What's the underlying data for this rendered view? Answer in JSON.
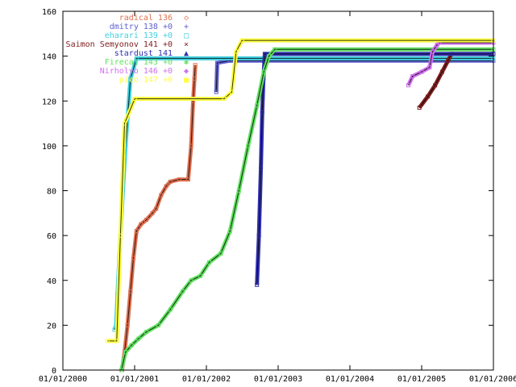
{
  "chart_data": {
    "type": "scatter",
    "title": "",
    "xlabel": "",
    "ylabel": "",
    "grid": false,
    "legend_placement": "top-left",
    "x_ticks": [
      "01/01/2000",
      "01/01/2001",
      "01/01/2002",
      "01/01/2003",
      "01/01/2004",
      "01/01/2005",
      "01/01/2006"
    ],
    "y_ticks": [
      "0",
      "20",
      "40",
      "60",
      "80",
      "100",
      "120",
      "140",
      "160"
    ],
    "xlim": [
      "2000-01-01",
      "2006-01-01"
    ],
    "ylim": [
      0,
      160
    ],
    "series": [
      {
        "name": "radical 136",
        "marker": "◇",
        "color": "#e07050",
        "points": [
          [
            "2000-10-28",
            0
          ],
          [
            "2000-11-10",
            8
          ],
          [
            "2000-11-25",
            20
          ],
          [
            "2000-12-10",
            35
          ],
          [
            "2000-12-25",
            50
          ],
          [
            "2001-01-10",
            62
          ],
          [
            "2001-02-01",
            65
          ],
          [
            "2001-03-01",
            67
          ],
          [
            "2001-04-01",
            70
          ],
          [
            "2001-04-20",
            72
          ],
          [
            "2001-05-15",
            78
          ],
          [
            "2001-06-10",
            82
          ],
          [
            "2001-07-01",
            84
          ],
          [
            "2001-08-15",
            85
          ],
          [
            "2001-09-30",
            85
          ],
          [
            "2001-10-15",
            100
          ],
          [
            "2001-10-25",
            120
          ],
          [
            "2001-11-01",
            130
          ],
          [
            "2001-11-05",
            136
          ]
        ]
      },
      {
        "name": "dmitry 138 +0",
        "marker": "+",
        "color": "#6060d0",
        "points": [
          [
            "2002-02-20",
            124
          ],
          [
            "2002-02-25",
            137
          ],
          [
            "2002-05-01",
            138
          ],
          [
            "2006-01-01",
            138
          ]
        ]
      },
      {
        "name": "eharari 139 +0",
        "marker": "□",
        "color": "#40d0e0",
        "points": [
          [
            "2000-09-20",
            18
          ],
          [
            "2000-09-28",
            20
          ],
          [
            "2000-10-05",
            34
          ],
          [
            "2000-10-20",
            60
          ],
          [
            "2000-11-15",
            100
          ],
          [
            "2000-12-10",
            130
          ],
          [
            "2001-01-10",
            139
          ],
          [
            "2006-01-01",
            139
          ]
        ]
      },
      {
        "name": "Saimon Semyonov 141 +0",
        "marker": "×",
        "color": "#802020",
        "points": [
          [
            "2004-12-20",
            117
          ],
          [
            "2005-02-01",
            122
          ],
          [
            "2005-03-10",
            127
          ],
          [
            "2005-04-15",
            133
          ],
          [
            "2005-05-15",
            138
          ],
          [
            "2005-06-01",
            141
          ],
          [
            "2006-01-01",
            141
          ]
        ]
      },
      {
        "name": "stardust 141",
        "marker": "▲",
        "color": "#3030b0",
        "points": [
          [
            "2002-09-15",
            38
          ],
          [
            "2002-09-25",
            60
          ],
          [
            "2002-10-05",
            90
          ],
          [
            "2002-10-12",
            115
          ],
          [
            "2002-10-18",
            130
          ],
          [
            "2002-10-25",
            141
          ],
          [
            "2006-01-01",
            141
          ]
        ]
      },
      {
        "name": "Firecat 143 +0",
        "marker": "✱",
        "color": "#60e060",
        "points": [
          [
            "2000-10-25",
            0
          ],
          [
            "2000-11-15",
            8
          ],
          [
            "2000-12-15",
            11
          ],
          [
            "2001-01-20",
            14
          ],
          [
            "2001-03-01",
            17
          ],
          [
            "2001-05-01",
            20
          ],
          [
            "2001-07-01",
            27
          ],
          [
            "2001-09-01",
            35
          ],
          [
            "2001-10-15",
            40
          ],
          [
            "2001-12-01",
            42
          ],
          [
            "2002-01-15",
            48
          ],
          [
            "2002-03-15",
            52
          ],
          [
            "2002-05-01",
            62
          ],
          [
            "2002-06-15",
            80
          ],
          [
            "2002-08-01",
            100
          ],
          [
            "2002-09-15",
            118
          ],
          [
            "2002-10-20",
            133
          ],
          [
            "2002-11-15",
            140
          ],
          [
            "2002-12-15",
            143
          ],
          [
            "2006-01-01",
            143
          ]
        ]
      },
      {
        "name": "Nirholyo 146 +0",
        "marker": "◆",
        "color": "#d070f0",
        "points": [
          [
            "2004-10-25",
            127
          ],
          [
            "2004-11-15",
            131
          ],
          [
            "2005-01-01",
            133
          ],
          [
            "2005-02-10",
            135
          ],
          [
            "2005-02-25",
            142
          ],
          [
            "2005-03-20",
            145
          ],
          [
            "2005-04-01",
            146
          ],
          [
            "2006-01-01",
            146
          ]
        ]
      },
      {
        "name": "pico 147 +0",
        "marker": "■",
        "color": "#ffff40",
        "points": [
          [
            "2000-08-15",
            13
          ],
          [
            "2000-10-01",
            13
          ],
          [
            "2000-10-20",
            60
          ],
          [
            "2000-11-10",
            110
          ],
          [
            "2001-01-01",
            121
          ],
          [
            "2002-04-01",
            121
          ],
          [
            "2002-05-10",
            124
          ],
          [
            "2002-06-01",
            142
          ],
          [
            "2002-07-01",
            147
          ],
          [
            "2006-01-01",
            147
          ]
        ]
      }
    ]
  }
}
